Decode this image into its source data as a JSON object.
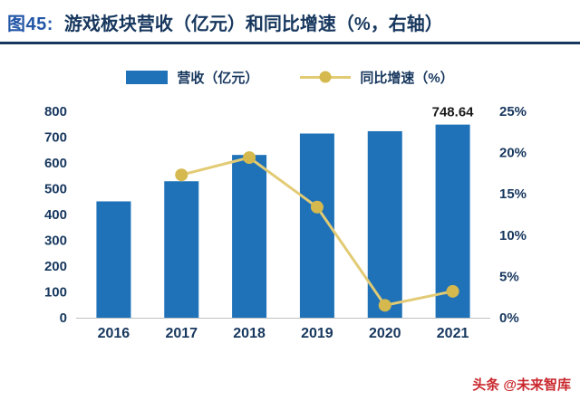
{
  "header": {
    "figure_label": "图45:",
    "title": "游戏板块营收（亿元）和同比增速（%，右轴）"
  },
  "legend": {
    "items": [
      {
        "label": "营收（亿元）",
        "type": "bar"
      },
      {
        "label": "同比增速（%）",
        "type": "line"
      }
    ]
  },
  "colors": {
    "title_navy": "#17375E",
    "figure_label_blue": "#2457A7",
    "bar_blue": "#1F72B8",
    "line_gold": "#E2CB74",
    "marker_gold": "#D5B94E",
    "axis_text": "#17375E",
    "value_label": "#1A1A1A",
    "credit_red": "#C9282D",
    "axis_line_gray": "#BFBFBF"
  },
  "chart_data": {
    "type": "bar",
    "subtype": "combo_bar_line_dual_axis",
    "title": "游戏板块营收（亿元）和同比增速（%，右轴）",
    "categories": [
      "2016",
      "2017",
      "2018",
      "2019",
      "2020",
      "2021"
    ],
    "series": [
      {
        "name": "营收（亿元）",
        "type": "bar",
        "axis": "left",
        "values": [
          451,
          529,
          631,
          714,
          723,
          748.64
        ]
      },
      {
        "name": "同比增速（%）",
        "type": "line",
        "axis": "right",
        "values": [
          null,
          17.3,
          19.4,
          13.4,
          1.5,
          3.2
        ]
      }
    ],
    "left_axis": {
      "min": 0,
      "max": 800,
      "step": 100
    },
    "right_axis": {
      "min": 0,
      "max": 25,
      "step": 5,
      "suffix": "%"
    },
    "annotations": [
      {
        "category": "2021",
        "text": "748.64"
      }
    ],
    "grid": false,
    "legend_position": "top"
  },
  "footer": {
    "credit": "头条 @未来智库"
  }
}
